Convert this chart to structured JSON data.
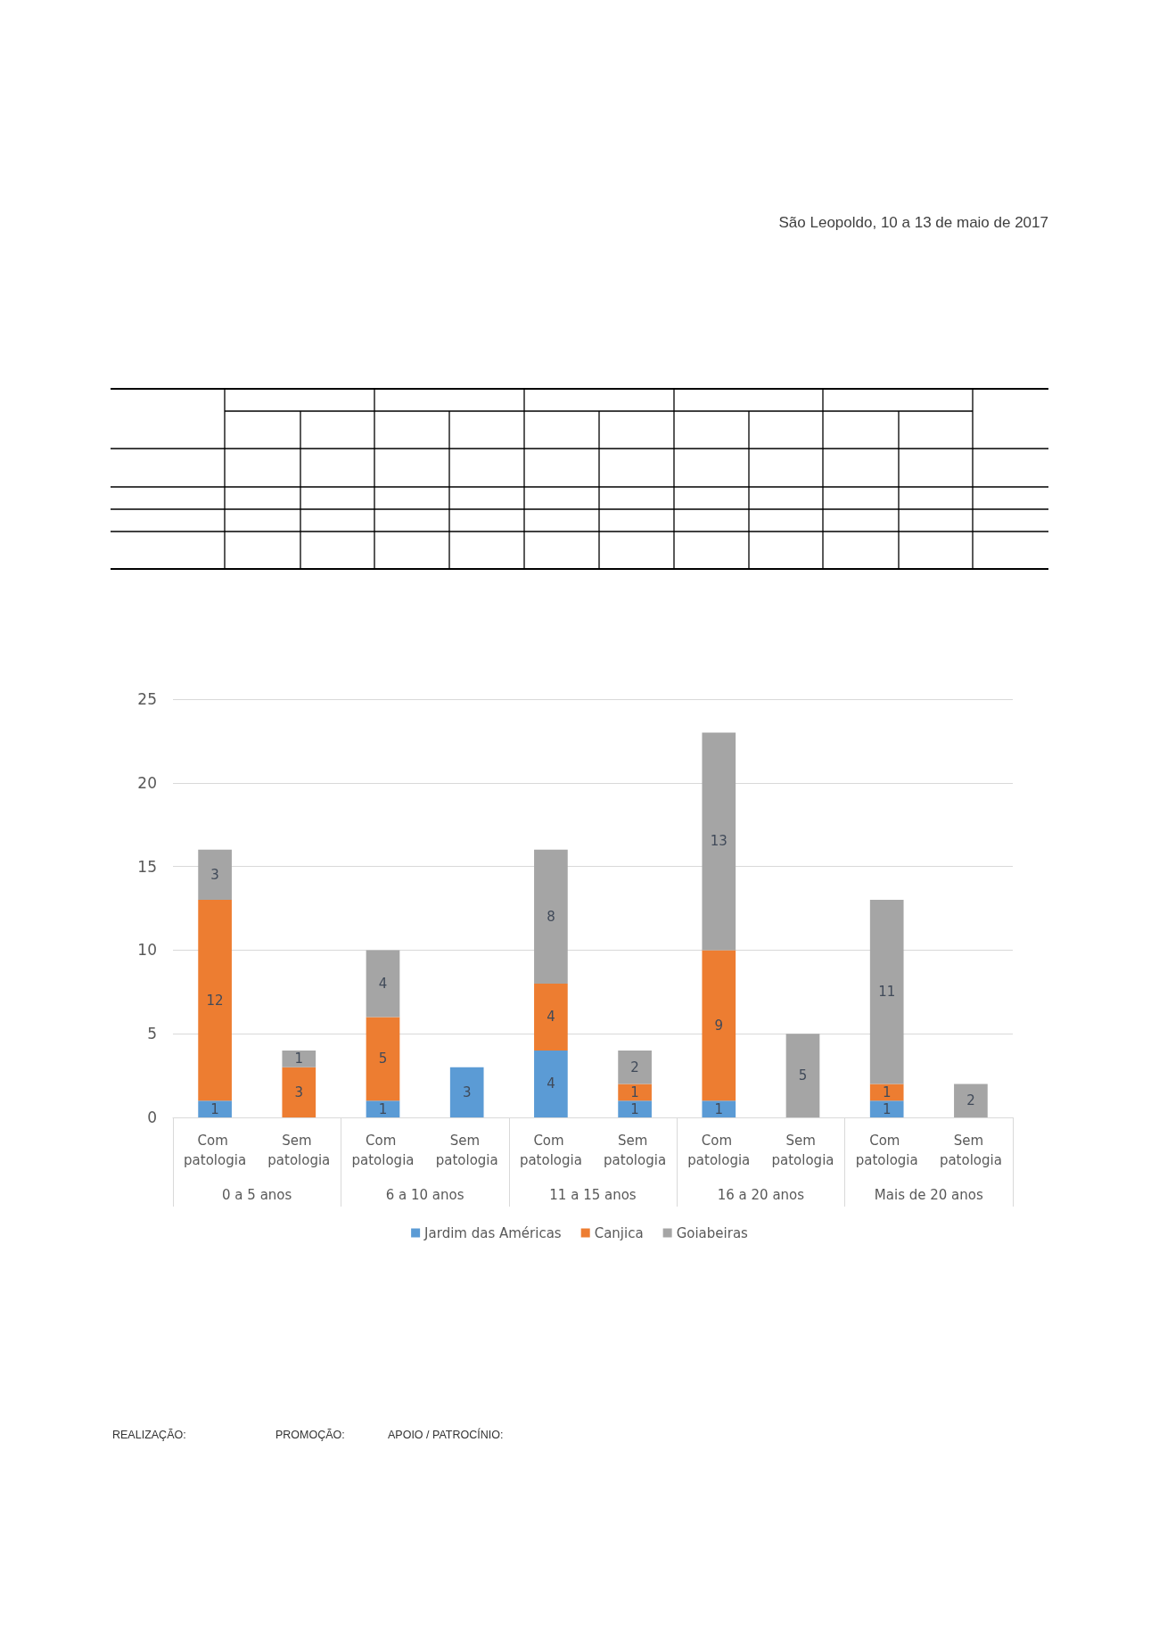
{
  "chart_data": {
    "type": "bar",
    "stacked": true,
    "categories": [
      "Com patologia",
      "Sem patologia",
      "Com patologia",
      "Sem patologia",
      "Com patologia",
      "Sem patologia",
      "Com patologia",
      "Sem patologia",
      "Com patologia",
      "Sem patologia"
    ],
    "series": [
      {
        "name": "Jardim das Américas",
        "color": "#5b9bd5",
        "values": [
          1,
          null,
          1,
          3,
          4,
          1,
          1,
          null,
          1,
          null
        ]
      },
      {
        "name": "Canjica",
        "color": "#ed7d31",
        "values": [
          12,
          3,
          5,
          null,
          4,
          1,
          9,
          null,
          1,
          null
        ]
      },
      {
        "name": "Goiabeiras",
        "color": "#a5a5a5",
        "values": [
          3,
          1,
          4,
          null,
          8,
          2,
          13,
          5,
          11,
          2
        ]
      }
    ],
    "ylim": [
      0,
      25
    ],
    "yticks": [
      0,
      5,
      10,
      15,
      20,
      25
    ],
    "grid": "y",
    "legend": "bottom",
    "data_labels": true,
    "annotations": [
      "São Leopoldo, 10 a 13 de maio de 2017",
      "0 a 5 anos",
      "6 a 10 anos",
      "11 a 15 anos",
      "16 a 20 anos",
      "Mais de 20 anos",
      "REALIZAÇÃO:",
      "PROMOÇÃO:",
      "APOIO / PATROCÍNIO:"
    ]
  }
}
